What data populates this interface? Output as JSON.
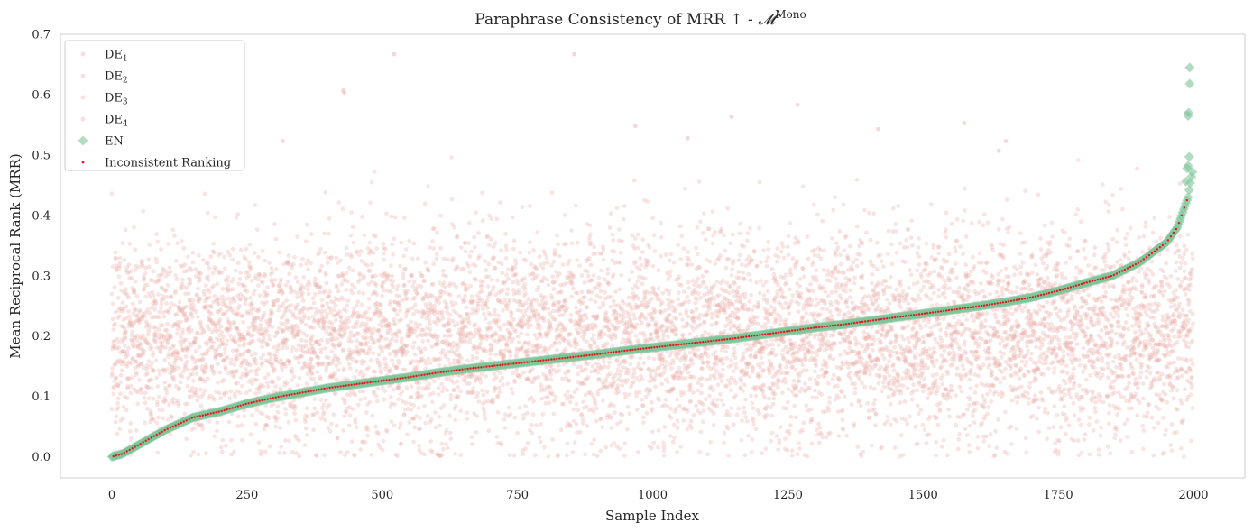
{
  "chart_data": {
    "type": "scatter",
    "title": "Paraphrase Consistency of MRR ↑  - ",
    "title_math": "𝓜",
    "title_sup": "Mono",
    "xlabel": "Sample Index",
    "ylabel": "Mean Reciprocal Rank (MRR)",
    "xlim": [
      -95,
      2095
    ],
    "ylim": [
      -0.035,
      0.7
    ],
    "xticks": [
      0,
      250,
      500,
      750,
      1000,
      1250,
      1500,
      1750,
      2000
    ],
    "xtick_labels": [
      "0",
      "250",
      "500",
      "750",
      "1000",
      "1250",
      "1500",
      "1750",
      "2000"
    ],
    "yticks": [
      0.0,
      0.1,
      0.2,
      0.3,
      0.4,
      0.5,
      0.6,
      0.7
    ],
    "ytick_labels": [
      "0.0",
      "0.1",
      "0.2",
      "0.3",
      "0.4",
      "0.5",
      "0.6",
      "0.7"
    ],
    "grid": false,
    "legend_position": "top-left",
    "n_samples": 2000,
    "colors": {
      "de_points": "#e8a9a3",
      "en_points": "#7fc49a",
      "inconsistent": "#e41a1c",
      "frame": "#cccccc"
    },
    "series": [
      {
        "name": "DE",
        "subscript": "1",
        "marker": "circle",
        "role": "de"
      },
      {
        "name": "DE",
        "subscript": "2",
        "marker": "circle",
        "role": "de"
      },
      {
        "name": "DE",
        "subscript": "3",
        "marker": "circle",
        "role": "de"
      },
      {
        "name": "DE",
        "subscript": "4",
        "marker": "circle",
        "role": "de"
      },
      {
        "name": "EN",
        "subscript": "",
        "marker": "diamond",
        "role": "en"
      },
      {
        "name": "Inconsistent Ranking",
        "subscript": "",
        "marker": "dot",
        "role": "inconsistent"
      }
    ],
    "en_curve": {
      "x": [
        0,
        20,
        50,
        100,
        150,
        200,
        250,
        300,
        350,
        400,
        450,
        500,
        550,
        600,
        650,
        700,
        750,
        800,
        850,
        900,
        950,
        1000,
        1050,
        1100,
        1150,
        1200,
        1250,
        1300,
        1350,
        1400,
        1450,
        1500,
        1550,
        1600,
        1650,
        1700,
        1750,
        1800,
        1850,
        1900,
        1950,
        1970,
        1980,
        1990,
        1995,
        2000
      ],
      "y": [
        0.0,
        0.005,
        0.02,
        0.045,
        0.065,
        0.075,
        0.088,
        0.098,
        0.106,
        0.114,
        0.12,
        0.126,
        0.132,
        0.139,
        0.145,
        0.15,
        0.155,
        0.16,
        0.165,
        0.17,
        0.176,
        0.181,
        0.186,
        0.191,
        0.196,
        0.202,
        0.208,
        0.214,
        0.219,
        0.225,
        0.231,
        0.237,
        0.243,
        0.249,
        0.256,
        0.264,
        0.275,
        0.288,
        0.3,
        0.322,
        0.355,
        0.38,
        0.405,
        0.43,
        0.46,
        0.48
      ]
    },
    "en_outliers": [
      {
        "x": 1993,
        "y": 0.645
      },
      {
        "x": 1993,
        "y": 0.618
      },
      {
        "x": 1991,
        "y": 0.57
      },
      {
        "x": 1990,
        "y": 0.565
      },
      {
        "x": 1992,
        "y": 0.497
      },
      {
        "x": 1990,
        "y": 0.482
      },
      {
        "x": 1988,
        "y": 0.478
      },
      {
        "x": 1986,
        "y": 0.456
      }
    ],
    "de_outliers": [
      {
        "x": 522,
        "y": 0.667
      },
      {
        "x": 855,
        "y": 0.667
      },
      {
        "x": 428,
        "y": 0.607
      },
      {
        "x": 430,
        "y": 0.603
      },
      {
        "x": 1576,
        "y": 0.553
      },
      {
        "x": 968,
        "y": 0.548
      },
      {
        "x": 1417,
        "y": 0.543
      },
      {
        "x": 1268,
        "y": 0.583
      },
      {
        "x": 1146,
        "y": 0.563
      },
      {
        "x": 1653,
        "y": 0.523
      },
      {
        "x": 1640,
        "y": 0.507
      },
      {
        "x": 316,
        "y": 0.523
      },
      {
        "x": 1987,
        "y": 0.57
      },
      {
        "x": 1065,
        "y": 0.528
      }
    ]
  }
}
